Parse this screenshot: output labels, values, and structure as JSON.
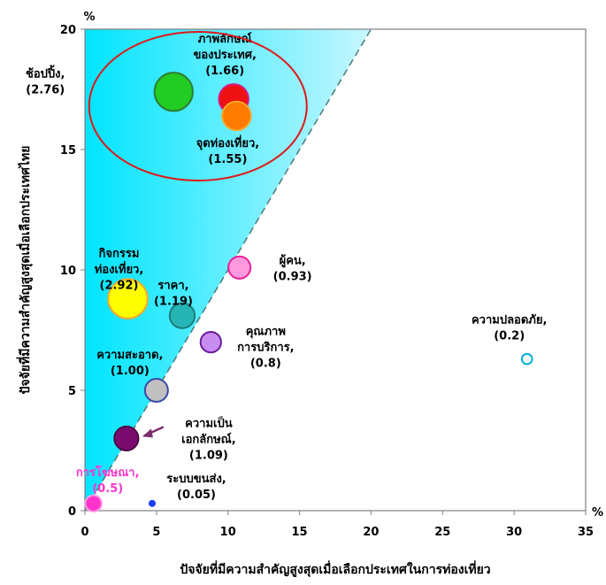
{
  "chart_data": {
    "type": "bubble",
    "title": "",
    "xlabel": "ปัจจัยที่มีความสำคัญสูงสุดเมื่อเลือกประเทศในการท่องเที่ยว",
    "ylabel": "ปัจจัยที่มีความสำคัญสูงสุดเมื่อเลือกประเทศไทย",
    "x_unit": "%",
    "y_unit": "%",
    "xlim": [
      0,
      35
    ],
    "ylim": [
      0,
      20
    ],
    "x_ticks": [
      "0",
      "5",
      "10",
      "15",
      "20",
      "25",
      "30",
      "35"
    ],
    "y_ticks": [
      "0",
      "5",
      "10",
      "15",
      "20"
    ],
    "grid": false,
    "diagonal_line": {
      "from": [
        0,
        0
      ],
      "to": [
        20,
        20
      ]
    },
    "shaded_region": "above diagonal",
    "highlight_ellipse": "around top-left cluster",
    "points": [
      {
        "lines": [
          "ช้อปปิ้ง,",
          "(2.76)"
        ],
        "x": 6.2,
        "y": 17.4,
        "ratio": 2.76,
        "color": "#22cc22",
        "stroke": "#2e7d32"
      },
      {
        "lines": [
          "ภาพลักษณ์",
          "ของประเทศ,",
          "(1.66)"
        ],
        "x": 10.4,
        "y": 17.1,
        "ratio": 1.66,
        "color": "#ee1111",
        "stroke": "#d81b8a"
      },
      {
        "lines": [
          "จุดท่องเที่ยว,",
          "(1.55)"
        ],
        "x": 10.6,
        "y": 16.4,
        "ratio": 1.55,
        "color": "#ff7a00",
        "stroke": "#f9a825"
      },
      {
        "lines": [
          "กิจกรรม",
          "ท่องเที่ยว,",
          "(2.92)"
        ],
        "x": 3.0,
        "y": 8.8,
        "ratio": 2.92,
        "color": "#ffff00",
        "stroke": "#f9a825"
      },
      {
        "lines": [
          "ราคา,",
          "(1.19)"
        ],
        "x": 6.8,
        "y": 8.1,
        "ratio": 1.19,
        "color": "#26b5b5",
        "stroke": "#1b7b7b"
      },
      {
        "lines": [
          "ผู้คน,",
          "(0.93)"
        ],
        "x": 10.8,
        "y": 10.1,
        "ratio": 0.93,
        "color": "#ff99dd",
        "stroke": "#e91e9a"
      },
      {
        "lines": [
          "คุณภาพ",
          "การบริการ,",
          "(0.8)"
        ],
        "x": 8.8,
        "y": 7.0,
        "ratio": 0.8,
        "color": "#c98cf0",
        "stroke": "#6a1b9a"
      },
      {
        "lines": [
          "ความสะอาด,",
          "(1.00)"
        ],
        "x": 5.0,
        "y": 5.0,
        "ratio": 1.0,
        "color": "#c0c0c0",
        "stroke": "#3949ab"
      },
      {
        "lines": [
          "ความเป็น",
          "เอกลักษณ์,",
          "(1.09)"
        ],
        "x": 2.9,
        "y": 3.0,
        "ratio": 1.09,
        "color": "#7b0a6e",
        "stroke": "#4a0642"
      },
      {
        "lines": [
          "การโฆษณา,",
          "(0.5)"
        ],
        "x": 0.6,
        "y": 0.3,
        "ratio": 0.5,
        "color": "#ff33cc",
        "stroke": "#ff99e6"
      },
      {
        "lines": [
          "ระบบขนส่ง,",
          "(0.05)"
        ],
        "x": 4.7,
        "y": 0.3,
        "ratio": 0.05,
        "color": "#1e3cff",
        "stroke": "#1e3cff"
      },
      {
        "lines": [
          "ความปลอดภัย,",
          "(0.2)"
        ],
        "x": 30.9,
        "y": 6.3,
        "ratio": 0.2,
        "color": "#ffffff",
        "stroke": "#00b0e0"
      }
    ]
  }
}
